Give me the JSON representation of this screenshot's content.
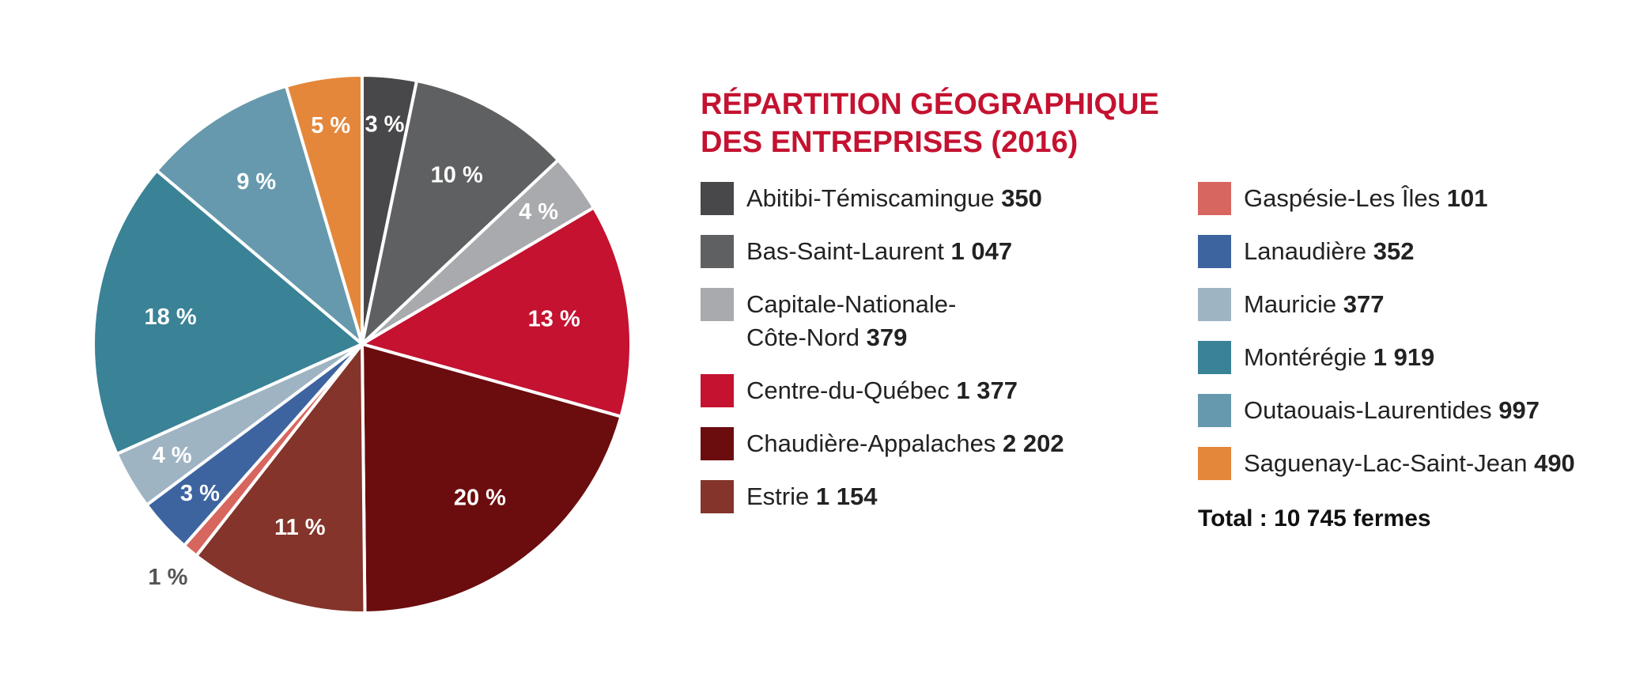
{
  "chart_data": {
    "type": "pie",
    "title": "RÉPARTITION GÉOGRAPHIQUE DES ENTREPRISES (2016)",
    "slices": [
      {
        "label": "Abitibi-Témiscamingue",
        "value": 350,
        "value_text": "350",
        "pct_label": "3 %",
        "color": "#48484a"
      },
      {
        "label": "Bas-Saint-Laurent",
        "value": 1047,
        "value_text": "1 047",
        "pct_label": "10 %",
        "color": "#5f6062"
      },
      {
        "label": "Capitale-Nationale-Côte-Nord",
        "value": 379,
        "value_text": "379",
        "pct_label": "4 %",
        "color": "#a9aaad"
      },
      {
        "label": "Centre-du-Québec",
        "value": 1377,
        "value_text": "1 377",
        "pct_label": "13 %",
        "color": "#c41230"
      },
      {
        "label": "Chaudière-Appalaches",
        "value": 2202,
        "value_text": "2 202",
        "pct_label": "20 %",
        "color": "#6b0c0e"
      },
      {
        "label": "Estrie",
        "value": 1154,
        "value_text": "1 154",
        "pct_label": "11 %",
        "color": "#84342a"
      },
      {
        "label": "Gaspésie-Les Îles",
        "value": 101,
        "value_text": "101",
        "pct_label": "1 %",
        "color": "#d7665e"
      },
      {
        "label": "Lanaudière",
        "value": 352,
        "value_text": "352",
        "pct_label": "3 %",
        "color": "#3e64a0"
      },
      {
        "label": "Mauricie",
        "value": 377,
        "value_text": "377",
        "pct_label": "4 %",
        "color": "#9fb4c3"
      },
      {
        "label": "Montérégie",
        "value": 1919,
        "value_text": "1 919",
        "pct_label": "18 %",
        "color": "#3a8296"
      },
      {
        "label": "Outaouais-Laurentides",
        "value": 997,
        "value_text": "997",
        "pct_label": "9 %",
        "color": "#6699ad"
      },
      {
        "label": "Saguenay-Lac-Saint-Jean",
        "value": 490,
        "value_text": "490",
        "pct_label": "5 %",
        "color": "#e4873a"
      }
    ],
    "total_label": "Total : 10 745 fermes",
    "start_angle_deg": 0,
    "direction": "clockwise"
  },
  "legend": {
    "title_line1": "RÉPARTITION GÉOGRAPHIQUE",
    "title_line2": "DES ENTREPRISES (2016)",
    "capitale_line1": "Capitale-Nationale-",
    "capitale_line2": "Côte-Nord"
  },
  "colors": {
    "title": "#c41230",
    "inside_label": "#ffffff",
    "outside_label": "#555555"
  }
}
